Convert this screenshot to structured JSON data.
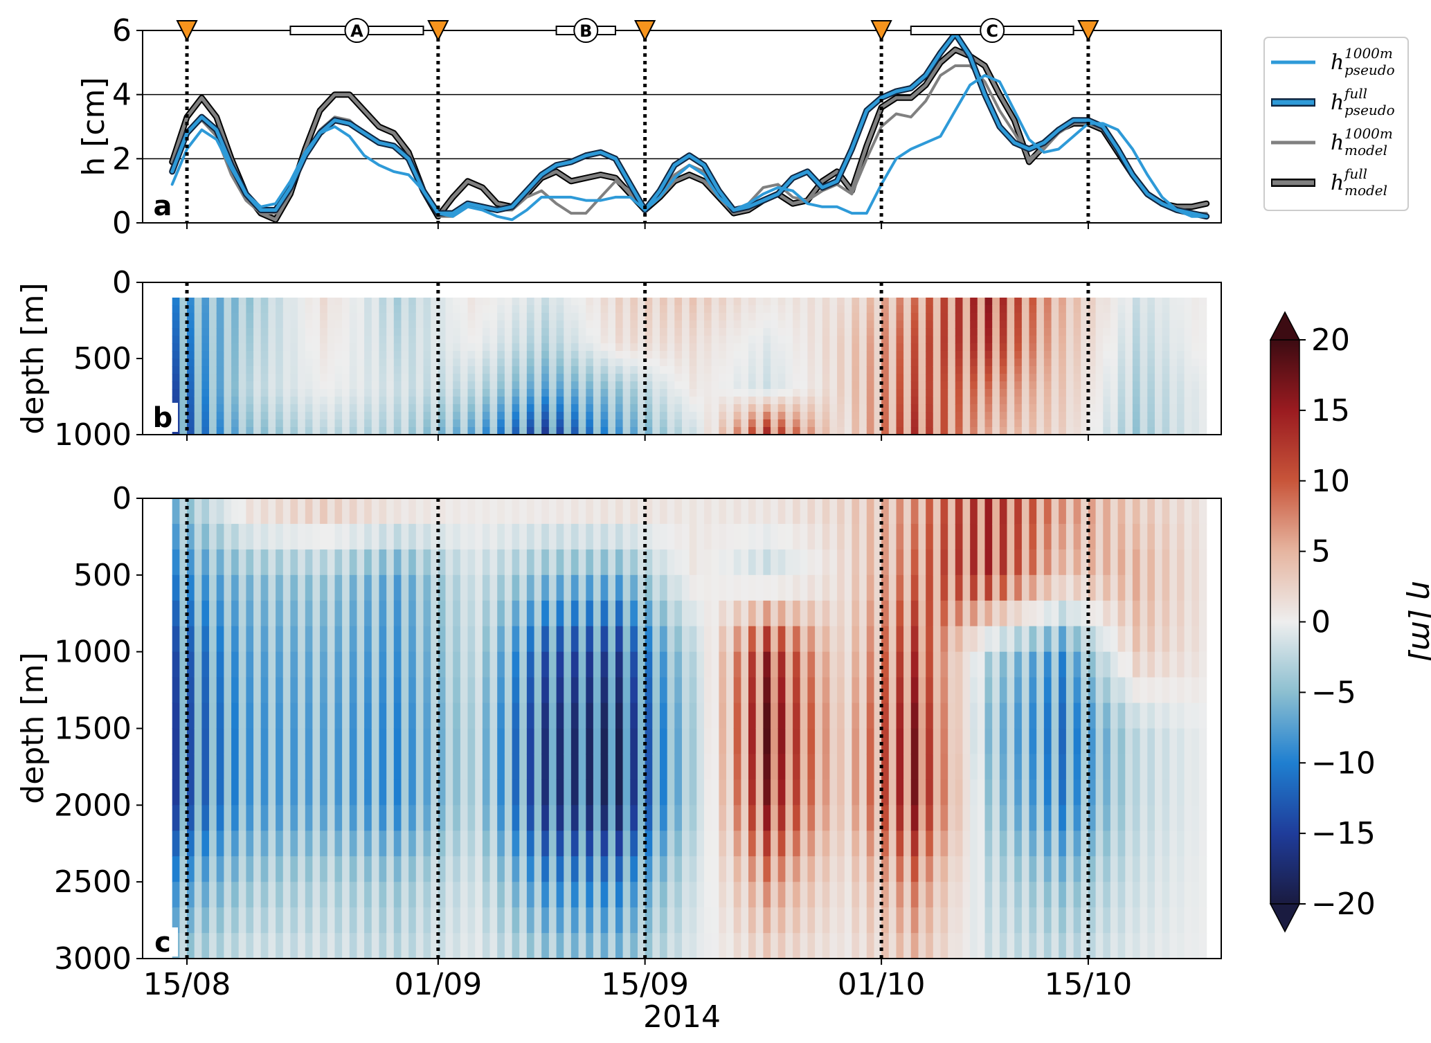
{
  "chart_data": [
    {
      "panel": "a",
      "type": "line",
      "ylabel": "h [cm]",
      "ylim": [
        0,
        6
      ],
      "yticks": [
        "0",
        "2",
        "4",
        "6"
      ],
      "xlim": [
        "2014-08-12",
        "2014-10-24"
      ],
      "grid": "horizontal lines at h = 2 and 4",
      "legend_position": "right, outside the axes",
      "events": {
        "markers": [
          "2014-08-15",
          "2014-09-01",
          "2014-09-15",
          "2014-10-01",
          "2014-10-15"
        ],
        "marker_color": "#f7941d",
        "periods": [
          {
            "label": "A",
            "start": "2014-08-22",
            "end": "2014-08-31"
          },
          {
            "label": "B",
            "start": "2014-09-09",
            "end": "2014-09-13"
          },
          {
            "label": "C",
            "start": "2014-10-03",
            "end": "2014-10-14"
          }
        ]
      },
      "series": [
        {
          "name": "h_pseudo^1000m",
          "legend_main": "h",
          "legend_sup": "1000m",
          "legend_sub": "pseudo",
          "color": "#2e9ad8",
          "width": 4,
          "style": "solid",
          "x": [
            "2014-08-14",
            "2014-08-15",
            "2014-08-16",
            "2014-08-17",
            "2014-08-18",
            "2014-08-19",
            "2014-08-20",
            "2014-08-21",
            "2014-08-22",
            "2014-08-23",
            "2014-08-24",
            "2014-08-25",
            "2014-08-26",
            "2014-08-27",
            "2014-08-28",
            "2014-08-29",
            "2014-08-30",
            "2014-08-31",
            "2014-09-01",
            "2014-09-02",
            "2014-09-03",
            "2014-09-04",
            "2014-09-05",
            "2014-09-06",
            "2014-09-07",
            "2014-09-08",
            "2014-09-09",
            "2014-09-10",
            "2014-09-11",
            "2014-09-12",
            "2014-09-13",
            "2014-09-14",
            "2014-09-15",
            "2014-09-16",
            "2014-09-17",
            "2014-09-18",
            "2014-09-19",
            "2014-09-20",
            "2014-09-21",
            "2014-09-22",
            "2014-09-23",
            "2014-09-24",
            "2014-09-25",
            "2014-09-26",
            "2014-09-27",
            "2014-09-28",
            "2014-09-29",
            "2014-09-30",
            "2014-10-01",
            "2014-10-02",
            "2014-10-03",
            "2014-10-04",
            "2014-10-05",
            "2014-10-06",
            "2014-10-07",
            "2014-10-08",
            "2014-10-09",
            "2014-10-10",
            "2014-10-11",
            "2014-10-12",
            "2014-10-13",
            "2014-10-14",
            "2014-10-15",
            "2014-10-16",
            "2014-10-17",
            "2014-10-18",
            "2014-10-19",
            "2014-10-20",
            "2014-10-21",
            "2014-10-22",
            "2014-10-23"
          ],
          "values": [
            1.2,
            2.3,
            2.9,
            2.6,
            1.7,
            0.9,
            0.5,
            0.6,
            1.3,
            2.2,
            2.8,
            3.0,
            2.7,
            2.1,
            1.8,
            1.6,
            1.5,
            1.0,
            0.3,
            0.2,
            0.5,
            0.4,
            0.2,
            0.1,
            0.4,
            0.8,
            0.8,
            0.8,
            0.7,
            0.7,
            0.8,
            0.8,
            0.4,
            0.8,
            1.4,
            1.8,
            1.5,
            0.8,
            0.4,
            0.6,
            0.9,
            1.1,
            1.0,
            0.6,
            0.5,
            0.5,
            0.3,
            0.3,
            1.2,
            2.0,
            2.3,
            2.5,
            2.7,
            3.5,
            4.3,
            4.6,
            4.4,
            3.5,
            2.6,
            2.2,
            2.3,
            2.7,
            3.1,
            3.1,
            2.9,
            2.3,
            1.5,
            0.8,
            0.4,
            0.2,
            0.2
          ]
        },
        {
          "name": "h_pseudo^full",
          "legend_main": "h",
          "legend_sup": "full",
          "legend_sub": "pseudo",
          "color": "#2e9ad8",
          "outline": "#10253f",
          "width": 5,
          "style": "solid",
          "x": [
            "2014-08-14",
            "2014-08-15",
            "2014-08-16",
            "2014-08-17",
            "2014-08-18",
            "2014-08-19",
            "2014-08-20",
            "2014-08-21",
            "2014-08-22",
            "2014-08-23",
            "2014-08-24",
            "2014-08-25",
            "2014-08-26",
            "2014-08-27",
            "2014-08-28",
            "2014-08-29",
            "2014-08-30",
            "2014-08-31",
            "2014-09-01",
            "2014-09-02",
            "2014-09-03",
            "2014-09-04",
            "2014-09-05",
            "2014-09-06",
            "2014-09-07",
            "2014-09-08",
            "2014-09-09",
            "2014-09-10",
            "2014-09-11",
            "2014-09-12",
            "2014-09-13",
            "2014-09-14",
            "2014-09-15",
            "2014-09-16",
            "2014-09-17",
            "2014-09-18",
            "2014-09-19",
            "2014-09-20",
            "2014-09-21",
            "2014-09-22",
            "2014-09-23",
            "2014-09-24",
            "2014-09-25",
            "2014-09-26",
            "2014-09-27",
            "2014-09-28",
            "2014-09-29",
            "2014-09-30",
            "2014-10-01",
            "2014-10-02",
            "2014-10-03",
            "2014-10-04",
            "2014-10-05",
            "2014-10-06",
            "2014-10-07",
            "2014-10-08",
            "2014-10-09",
            "2014-10-10",
            "2014-10-11",
            "2014-10-12",
            "2014-10-13",
            "2014-10-14",
            "2014-10-15",
            "2014-10-16",
            "2014-10-17",
            "2014-10-18",
            "2014-10-19",
            "2014-10-20",
            "2014-10-21",
            "2014-10-22",
            "2014-10-23"
          ],
          "values": [
            1.6,
            2.8,
            3.3,
            2.9,
            1.8,
            0.9,
            0.4,
            0.4,
            1.1,
            2.1,
            2.8,
            3.2,
            3.1,
            2.8,
            2.5,
            2.4,
            2.0,
            1.0,
            0.3,
            0.3,
            0.6,
            0.5,
            0.4,
            0.5,
            1.0,
            1.5,
            1.8,
            1.9,
            2.1,
            2.2,
            2.0,
            1.2,
            0.4,
            1.0,
            1.8,
            2.1,
            1.8,
            1.0,
            0.4,
            0.5,
            0.7,
            0.9,
            1.4,
            1.6,
            1.1,
            1.3,
            2.3,
            3.5,
            3.9,
            4.1,
            4.2,
            4.6,
            5.3,
            5.9,
            5.2,
            4.0,
            3.0,
            2.5,
            2.3,
            2.5,
            2.9,
            3.2,
            3.2,
            3.0,
            2.3,
            1.5,
            0.9,
            0.6,
            0.4,
            0.3,
            0.2
          ]
        },
        {
          "name": "h_model^1000m",
          "legend_main": "h",
          "legend_sup": "1000m",
          "legend_sub": "model",
          "color": "#808080",
          "width": 4,
          "style": "solid",
          "x": [
            "2014-08-14",
            "2014-08-15",
            "2014-08-16",
            "2014-08-17",
            "2014-08-18",
            "2014-08-19",
            "2014-08-20",
            "2014-08-21",
            "2014-08-22",
            "2014-08-23",
            "2014-08-24",
            "2014-08-25",
            "2014-08-26",
            "2014-08-27",
            "2014-08-28",
            "2014-08-29",
            "2014-08-30",
            "2014-08-31",
            "2014-09-01",
            "2014-09-02",
            "2014-09-03",
            "2014-09-04",
            "2014-09-05",
            "2014-09-06",
            "2014-09-07",
            "2014-09-08",
            "2014-09-09",
            "2014-09-10",
            "2014-09-11",
            "2014-09-12",
            "2014-09-13",
            "2014-09-14",
            "2014-09-15",
            "2014-09-16",
            "2014-09-17",
            "2014-09-18",
            "2014-09-19",
            "2014-09-20",
            "2014-09-21",
            "2014-09-22",
            "2014-09-23",
            "2014-09-24",
            "2014-09-25",
            "2014-09-26",
            "2014-09-27",
            "2014-09-28",
            "2014-09-29",
            "2014-09-30",
            "2014-10-01",
            "2014-10-02",
            "2014-10-03",
            "2014-10-04",
            "2014-10-05",
            "2014-10-06",
            "2014-10-07",
            "2014-10-08",
            "2014-10-09",
            "2014-10-10",
            "2014-10-11",
            "2014-10-12",
            "2014-10-13",
            "2014-10-14",
            "2014-10-15",
            "2014-10-16",
            "2014-10-17",
            "2014-10-18",
            "2014-10-19",
            "2014-10-20",
            "2014-10-21",
            "2014-10-22",
            "2014-10-23"
          ],
          "values": [
            1.6,
            2.8,
            3.2,
            2.7,
            1.5,
            0.7,
            0.3,
            0.3,
            1.0,
            2.1,
            2.9,
            3.3,
            3.2,
            2.8,
            2.5,
            2.4,
            2.0,
            1.0,
            0.2,
            0.2,
            0.5,
            0.5,
            0.4,
            0.4,
            0.8,
            1.0,
            0.6,
            0.3,
            0.3,
            0.8,
            1.3,
            1.0,
            0.4,
            0.9,
            1.5,
            1.8,
            1.6,
            1.0,
            0.4,
            0.6,
            1.1,
            1.2,
            0.8,
            0.7,
            1.0,
            1.2,
            0.9,
            2.0,
            3.0,
            3.4,
            3.3,
            3.8,
            4.6,
            4.9,
            4.9,
            4.4,
            3.5,
            2.8,
            2.0,
            2.3,
            2.8,
            3.1,
            3.1,
            2.9,
            2.2,
            1.5,
            0.9,
            0.6,
            0.4,
            0.3,
            0.3
          ]
        },
        {
          "name": "h_model^full",
          "legend_main": "h",
          "legend_sup": "full",
          "legend_sub": "model",
          "color": "#808080",
          "outline": "#000000",
          "width": 5,
          "style": "solid",
          "x": [
            "2014-08-14",
            "2014-08-15",
            "2014-08-16",
            "2014-08-17",
            "2014-08-18",
            "2014-08-19",
            "2014-08-20",
            "2014-08-21",
            "2014-08-22",
            "2014-08-23",
            "2014-08-24",
            "2014-08-25",
            "2014-08-26",
            "2014-08-27",
            "2014-08-28",
            "2014-08-29",
            "2014-08-30",
            "2014-08-31",
            "2014-09-01",
            "2014-09-02",
            "2014-09-03",
            "2014-09-04",
            "2014-09-05",
            "2014-09-06",
            "2014-09-07",
            "2014-09-08",
            "2014-09-09",
            "2014-09-10",
            "2014-09-11",
            "2014-09-12",
            "2014-09-13",
            "2014-09-14",
            "2014-09-15",
            "2014-09-16",
            "2014-09-17",
            "2014-09-18",
            "2014-09-19",
            "2014-09-20",
            "2014-09-21",
            "2014-09-22",
            "2014-09-23",
            "2014-09-24",
            "2014-09-25",
            "2014-09-26",
            "2014-09-27",
            "2014-09-28",
            "2014-09-29",
            "2014-09-30",
            "2014-10-01",
            "2014-10-02",
            "2014-10-03",
            "2014-10-04",
            "2014-10-05",
            "2014-10-06",
            "2014-10-07",
            "2014-10-08",
            "2014-10-09",
            "2014-10-10",
            "2014-10-11",
            "2014-10-12",
            "2014-10-13",
            "2014-10-14",
            "2014-10-15",
            "2014-10-16",
            "2014-10-17",
            "2014-10-18",
            "2014-10-19",
            "2014-10-20",
            "2014-10-21",
            "2014-10-22",
            "2014-10-23"
          ],
          "values": [
            1.9,
            3.3,
            3.9,
            3.3,
            2.0,
            0.9,
            0.3,
            0.1,
            0.9,
            2.3,
            3.5,
            4.0,
            4.0,
            3.5,
            3.0,
            2.8,
            2.2,
            1.0,
            0.2,
            0.8,
            1.3,
            1.1,
            0.6,
            0.5,
            0.9,
            1.4,
            1.6,
            1.3,
            1.4,
            1.5,
            1.4,
            0.9,
            0.4,
            0.8,
            1.3,
            1.5,
            1.3,
            0.8,
            0.3,
            0.4,
            0.7,
            0.9,
            0.6,
            0.7,
            1.3,
            1.6,
            1.0,
            2.4,
            3.6,
            3.9,
            3.9,
            4.3,
            5.0,
            5.4,
            5.2,
            4.9,
            4.0,
            3.2,
            1.9,
            2.4,
            2.9,
            3.1,
            3.1,
            2.9,
            2.2,
            1.5,
            0.9,
            0.6,
            0.5,
            0.5,
            0.6
          ]
        }
      ]
    },
    {
      "panel": "b",
      "type": "heatmap",
      "ylabel": "depth [m]",
      "ylim": [
        1000,
        0
      ],
      "yticks": [
        "0",
        "500",
        "1000"
      ],
      "data_depth_range": [
        100,
        1000
      ],
      "description_of_field": "eta [m] versus time and depth (upper 1000 m)",
      "x": [
        "2014-08-14",
        "2014-08-19",
        "2014-08-24",
        "2014-08-29",
        "2014-09-03",
        "2014-09-08",
        "2014-09-13",
        "2014-09-18",
        "2014-09-23",
        "2014-09-28",
        "2014-10-03",
        "2014-10-08",
        "2014-10-13",
        "2014-10-18",
        "2014-10-23"
      ],
      "depths": [
        100,
        400,
        700,
        1000
      ],
      "values": [
        [
          -10,
          -5,
          2,
          -4,
          1,
          -2,
          3,
          4,
          1,
          2,
          9,
          16,
          6,
          -2,
          1
        ],
        [
          -12,
          -4,
          1,
          -3,
          0,
          -4,
          2,
          2,
          -1,
          3,
          11,
          14,
          5,
          -3,
          1
        ],
        [
          -14,
          -3,
          0,
          -2,
          -3,
          -8,
          -5,
          1,
          -2,
          3,
          12,
          9,
          4,
          -4,
          0
        ],
        [
          -15,
          -6,
          -3,
          -4,
          -8,
          -16,
          -9,
          -2,
          15,
          2,
          14,
          6,
          3,
          -5,
          0
        ]
      ]
    },
    {
      "panel": "c",
      "type": "heatmap",
      "ylabel": "depth [m]",
      "xlabel": "2014",
      "ylim": [
        3000,
        0
      ],
      "yticks": [
        "0",
        "500",
        "1000",
        "1500",
        "2000",
        "2500",
        "3000"
      ],
      "xticks": [
        {
          "date": "2014-08-15",
          "label": "15/08"
        },
        {
          "date": "2014-09-01",
          "label": "01/09"
        },
        {
          "date": "2014-09-15",
          "label": "15/09"
        },
        {
          "date": "2014-10-01",
          "label": "01/10"
        },
        {
          "date": "2014-10-15",
          "label": "15/10"
        }
      ],
      "description_of_field": "eta [m] versus time and depth (full water column)",
      "x": [
        "2014-08-14",
        "2014-08-19",
        "2014-08-24",
        "2014-08-29",
        "2014-09-03",
        "2014-09-08",
        "2014-09-13",
        "2014-09-18",
        "2014-09-23",
        "2014-09-28",
        "2014-10-03",
        "2014-10-08",
        "2014-10-13",
        "2014-10-18",
        "2014-10-23"
      ],
      "depths": [
        0,
        500,
        1000,
        1500,
        2000,
        2500,
        3000
      ],
      "values": [
        [
          -6,
          3,
          5,
          3,
          1,
          2,
          3,
          1,
          2,
          3,
          8,
          15,
          8,
          4,
          1
        ],
        [
          -10,
          -6,
          -5,
          -8,
          -2,
          -6,
          -7,
          1,
          -3,
          2,
          10,
          15,
          5,
          6,
          1
        ],
        [
          -14,
          -8,
          -7,
          -9,
          -3,
          -14,
          -16,
          -3,
          16,
          3,
          14,
          -4,
          -10,
          4,
          1
        ],
        [
          -15,
          -9,
          -8,
          -10,
          -4,
          -17,
          -19,
          -4,
          19,
          4,
          17,
          -6,
          -12,
          -3,
          0
        ],
        [
          -15,
          -9,
          -8,
          -10,
          -4,
          -17,
          -19,
          -4,
          17,
          4,
          17,
          -5,
          -11,
          -3,
          0
        ],
        [
          -9,
          -5,
          -4,
          -5,
          -2,
          -10,
          -11,
          -2,
          8,
          2,
          9,
          -3,
          -6,
          -2,
          0
        ],
        [
          -5,
          -2,
          -2,
          -3,
          -1,
          -5,
          -6,
          -1,
          3,
          1,
          5,
          -2,
          -3,
          -1,
          0
        ]
      ]
    },
    {
      "panel": "colorbar",
      "type": "colorbar",
      "label": "η [m]",
      "range": [
        -20,
        20
      ],
      "ticks": [
        "−20",
        "−15",
        "−10",
        "−5",
        "0",
        "5",
        "10",
        "15",
        "20"
      ],
      "extend": "both",
      "colormap": [
        "#1a1b40",
        "#1f3c9a",
        "#1f7fd0",
        "#8cbfd0",
        "#eeeeee",
        "#e6b5a0",
        "#c8553a",
        "#9a1b20",
        "#3c0b12"
      ]
    }
  ],
  "panel_letters": {
    "a": "a",
    "b": "b",
    "c": "c"
  },
  "period_labels": {
    "A": "A",
    "B": "B",
    "C": "C"
  },
  "axis_texts": {
    "a_ylabel": "h [cm]",
    "b_ylabel": "depth [m]",
    "c_ylabel": "depth [m]",
    "c_xlabel": "2014",
    "colorbar_label": "η [m]"
  },
  "colors": {
    "marker": "#f7941d",
    "pseudo": "#2e9ad8",
    "model": "#808080"
  }
}
